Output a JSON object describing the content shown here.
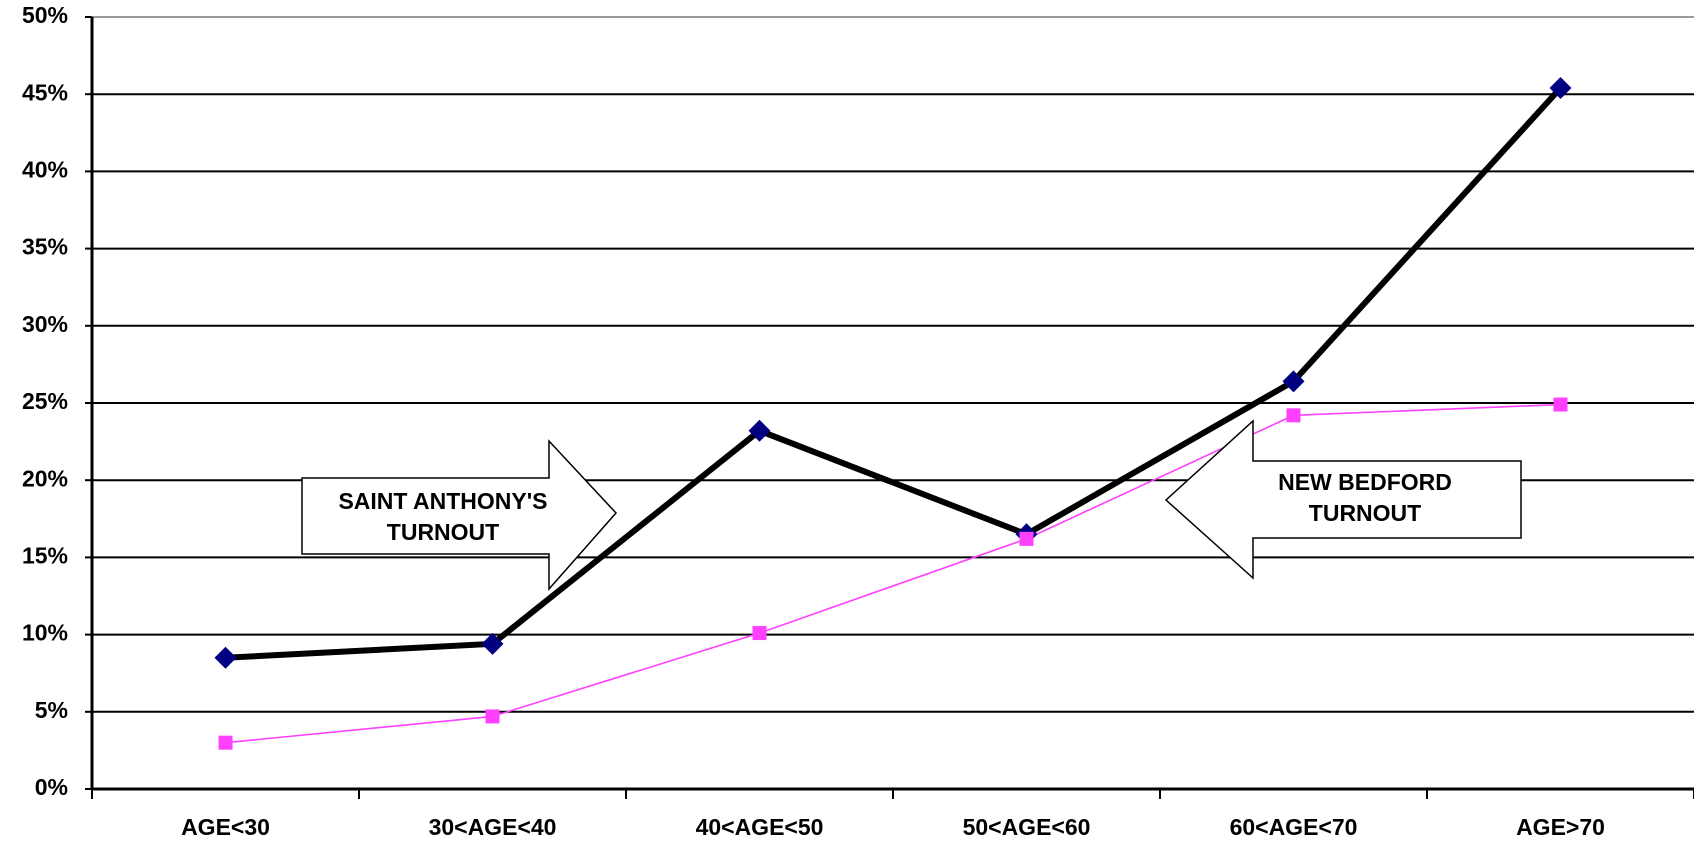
{
  "chart_data": {
    "type": "line",
    "categories": [
      "AGE<30",
      "30<AGE<40",
      "40<AGE<50",
      "50<AGE<60",
      "60<AGE<70",
      "AGE>70"
    ],
    "series": [
      {
        "color": "#000000",
        "marker_color": "#000080",
        "marker": "diamond",
        "values": [
          8.5,
          9.4,
          23.2,
          16.5,
          26.4,
          45.4
        ]
      },
      {
        "color": "#ff40ff",
        "marker_color": "#ff40ff",
        "marker": "square",
        "values": [
          3.0,
          4.7,
          10.1,
          16.2,
          24.2,
          24.9
        ]
      }
    ],
    "ylim": [
      0,
      50
    ],
    "yticks": [
      {
        "value": 0,
        "label": "0%"
      },
      {
        "value": 5,
        "label": "5%"
      },
      {
        "value": 10,
        "label": "10%"
      },
      {
        "value": 15,
        "label": "15%"
      },
      {
        "value": 20,
        "label": "20%"
      },
      {
        "value": 25,
        "label": "25%"
      },
      {
        "value": 30,
        "label": "30%"
      },
      {
        "value": 35,
        "label": "35%"
      },
      {
        "value": 40,
        "label": "40%"
      },
      {
        "value": 45,
        "label": "45%"
      },
      {
        "value": 50,
        "label": "50%"
      }
    ],
    "grid": true,
    "annotations": [
      {
        "lines": [
          "SAINT ANTHONY'S",
          "TURNOUT"
        ]
      },
      {
        "lines": [
          "NEW BEDFORD",
          "TURNOUT"
        ]
      }
    ]
  }
}
